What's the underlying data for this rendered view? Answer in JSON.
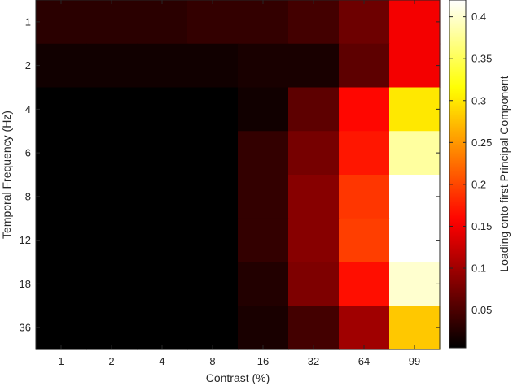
{
  "chart_data": {
    "type": "heatmap",
    "title": "",
    "xlabel": "Contrast (%)",
    "ylabel": "Temporal Frequency (Hz)",
    "colorbar_label": "Loading onto first Principal Component",
    "colormap": "hot",
    "x_categories": [
      "1",
      "2",
      "4",
      "8",
      "16",
      "32",
      "64",
      "99"
    ],
    "y_categories": [
      "1",
      "2",
      "4",
      "6",
      "8",
      "12",
      "18",
      "36"
    ],
    "values": [
      [
        0.03,
        0.03,
        0.03,
        0.035,
        0.035,
        0.045,
        0.07,
        0.15
      ],
      [
        0.015,
        0.015,
        0.015,
        0.015,
        0.02,
        0.02,
        0.06,
        0.15
      ],
      [
        0.005,
        0.005,
        0.005,
        0.005,
        0.015,
        0.06,
        0.16,
        0.3
      ],
      [
        0.005,
        0.005,
        0.005,
        0.005,
        0.035,
        0.075,
        0.17,
        0.38
      ],
      [
        0.005,
        0.005,
        0.005,
        0.005,
        0.035,
        0.085,
        0.19,
        0.42
      ],
      [
        0.005,
        0.005,
        0.005,
        0.005,
        0.035,
        0.085,
        0.195,
        0.42
      ],
      [
        0.005,
        0.005,
        0.005,
        0.005,
        0.025,
        0.08,
        0.165,
        0.4
      ],
      [
        0.005,
        0.005,
        0.005,
        0.005,
        0.02,
        0.045,
        0.1,
        0.28
      ]
    ],
    "colorbar_range": [
      0.005,
      0.42
    ],
    "colorbar_ticks": [
      0.05,
      0.1,
      0.15,
      0.2,
      0.25,
      0.3,
      0.35,
      0.4
    ],
    "colorbar_tick_labels": [
      "0.05",
      "0.1",
      "0.15",
      "0.2",
      "0.25",
      "0.3",
      "0.35",
      "0.4"
    ]
  }
}
